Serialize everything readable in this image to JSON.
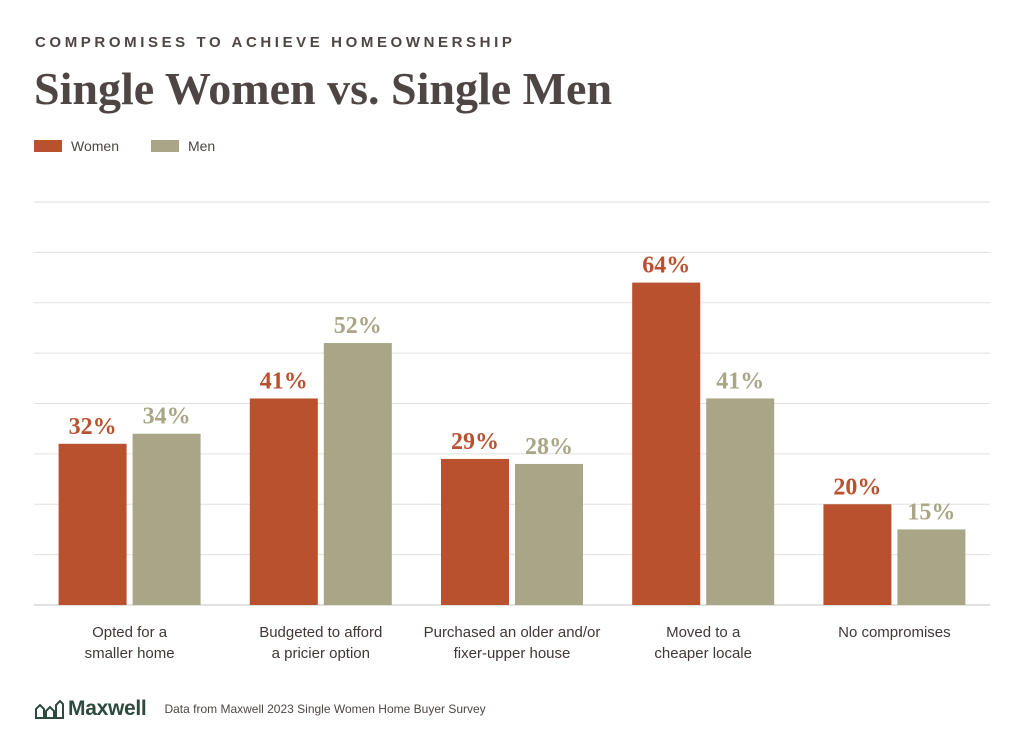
{
  "header": {
    "eyebrow": "COMPROMISES TO ACHIEVE HOMEOWNERSHIP",
    "title": "Single Women vs. Single Men"
  },
  "legend": [
    {
      "label": "Women",
      "color": "#b9502e"
    },
    {
      "label": "Men",
      "color": "#a8a686"
    }
  ],
  "chart_data": {
    "type": "bar",
    "categories": [
      [
        "Opted for a",
        "smaller home"
      ],
      [
        "Budgeted to afford",
        "a pricier option"
      ],
      [
        "Purchased an older and/or",
        "fixer-upper house"
      ],
      [
        "Moved to a",
        "cheaper locale"
      ],
      [
        "No compromises"
      ]
    ],
    "series": [
      {
        "name": "Women",
        "color": "#b9502e",
        "values": [
          32,
          41,
          29,
          64,
          20
        ],
        "labels": [
          "32%",
          "41%",
          "29%",
          "64%",
          "20%"
        ]
      },
      {
        "name": "Men",
        "color": "#a8a686",
        "values": [
          34,
          52,
          28,
          41,
          15
        ],
        "labels": [
          "34%",
          "52%",
          "28%",
          "41%",
          "15%"
        ]
      }
    ],
    "ylim": [
      0,
      80
    ],
    "grid": true,
    "legend_position": "top-left"
  },
  "footer": {
    "logo_text": "Maxwell",
    "logo_icon": "house-bars-icon",
    "source": "Data from Maxwell 2023 Single Women Home Buyer Survey"
  }
}
